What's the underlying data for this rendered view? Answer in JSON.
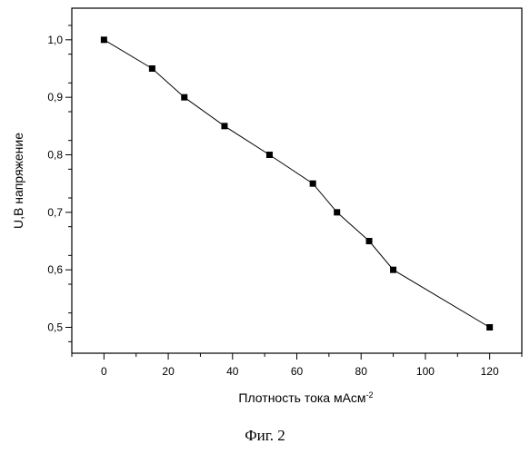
{
  "chart_data": {
    "type": "line",
    "title": "",
    "xlabel": "Плотность тока мАсм",
    "xlabel_superscript": "-2",
    "ylabel": "U,B напряжение",
    "xlim": [
      -10,
      130
    ],
    "ylim": [
      0.455,
      1.055
    ],
    "x_ticks": [
      0,
      20,
      40,
      60,
      80,
      100,
      120
    ],
    "x_tick_labels": [
      "0",
      "20",
      "40",
      "60",
      "80",
      "100",
      "120"
    ],
    "y_ticks": [
      0.5,
      0.6,
      0.7,
      0.8,
      0.9,
      1.0
    ],
    "y_tick_labels": [
      "0,5",
      "0,6",
      "0,7",
      "0,8",
      "0,9",
      "1,0"
    ],
    "grid": false,
    "series": [
      {
        "x": [
          0,
          15,
          25,
          37.5,
          51.5,
          65,
          72.5,
          82.5,
          90,
          120
        ],
        "y": [
          1.0,
          0.95,
          0.9,
          0.85,
          0.8,
          0.75,
          0.7,
          0.65,
          0.6,
          0.5
        ],
        "marker": "square",
        "color": "#000000"
      }
    ]
  },
  "caption": "Фиг. 2"
}
